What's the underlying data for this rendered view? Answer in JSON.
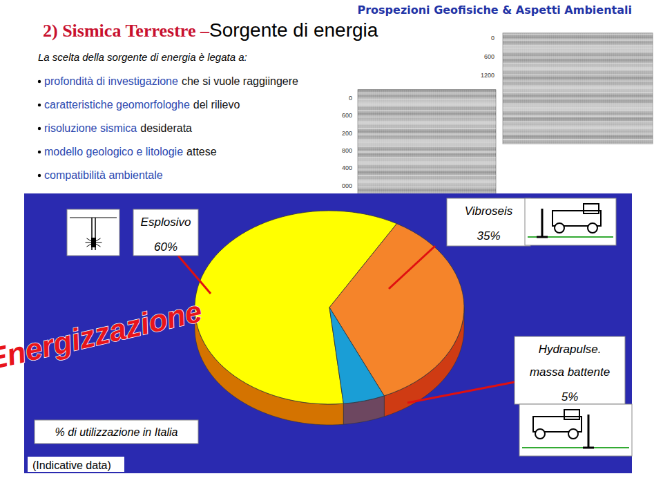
{
  "slide": {
    "header": "Prospezioni Geofisiche & Aspetti Ambientali",
    "title": [
      "2) Sismica Terrestre –",
      "Sorgente di energia"
    ],
    "intro": "La scelta della sorgente di energia è legata a:",
    "bullets": [
      [
        "profondità di investigazione",
        "che si vuole raggiingere"
      ],
      [
        "caratteristiche geomorfologhe",
        "del rilievo"
      ],
      [
        "risoluzione sismica",
        "desiderata"
      ],
      [
        "modello geologico e litologie",
        "attese"
      ],
      [
        "compatibilità  ambientale"
      ]
    ],
    "seismic_sections": [
      [
        "0",
        "600",
        "1200"
      ],
      [
        "0",
        "600",
        "200",
        "800",
        "400",
        "000"
      ]
    ]
  },
  "chart_data": {
    "type": "pie",
    "title": "Energizzazione",
    "subtitle": "% di utilizzazione in Italia",
    "annotations": [
      "(Indicative data)"
    ],
    "categories": [
      "Esplosivo",
      "Vibroseis",
      "Hydrapulse.\nmassa battente"
    ],
    "values": [
      60,
      35,
      5
    ],
    "value_labels": [
      "60%",
      "35%",
      "5%"
    ],
    "colors": [
      "#ffff00",
      "#f5842a",
      "#1a9ed6"
    ],
    "data_labels": true
  }
}
